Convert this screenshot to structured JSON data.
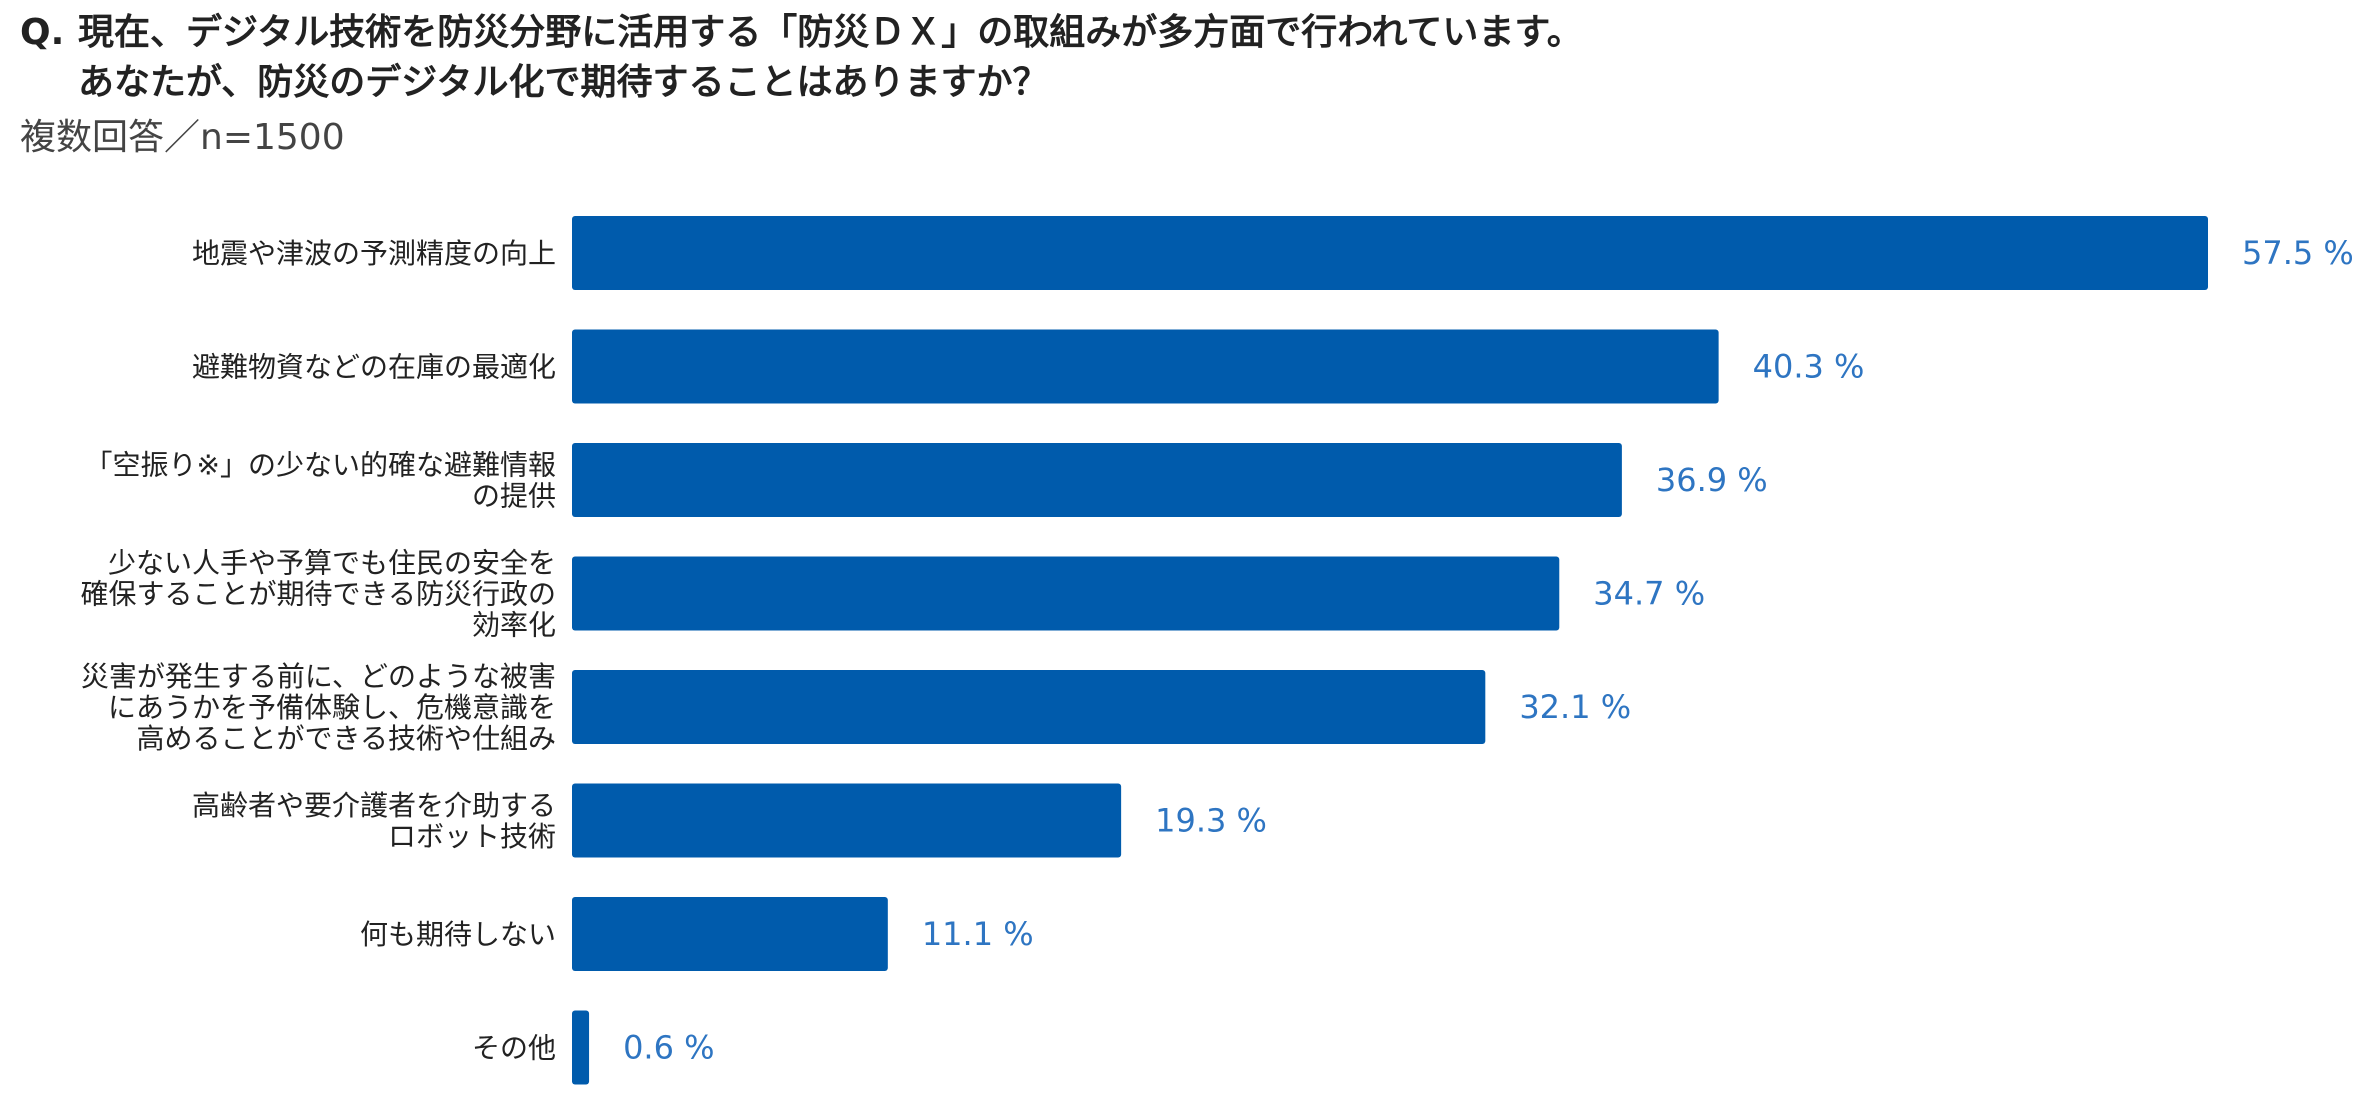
{
  "question": {
    "prefix": "Q.",
    "line1": "現在、デジタル技術を防災分野に活用する「防災ＤＸ」の取組みが多方面で行われています。",
    "line2": "あなたが、防災のデジタル化で期待することはありますか？"
  },
  "subtitle": "複数回答／n=1500",
  "colors": {
    "bar": "#005bac",
    "value_text": "#2e75c2"
  },
  "chart_data": {
    "type": "bar",
    "orientation": "horizontal",
    "title": "",
    "xlabel": "",
    "ylabel": "",
    "xlim": [
      0,
      57.5
    ],
    "unit": "%",
    "categories": [
      [
        "地震や津波の予測精度の向上"
      ],
      [
        "避難物資などの在庫の最適化"
      ],
      [
        "「空振り※」の少ない的確な避難情報",
        "の提供"
      ],
      [
        "少ない人手や予算でも住民の安全を",
        "確保することが期待できる防災行政の",
        "効率化"
      ],
      [
        "災害が発生する前に、どのような被害",
        "にあうかを予備体験し、危機意識を",
        "高めることができる技術や仕組み"
      ],
      [
        "高齢者や要介護者を介助する",
        "ロボット技術"
      ],
      [
        "何も期待しない"
      ],
      [
        "その他"
      ]
    ],
    "values": [
      57.5,
      40.3,
      36.9,
      34.7,
      32.1,
      19.3,
      11.1,
      0.6
    ],
    "value_labels": [
      "57.5 %",
      "40.3 %",
      "36.9 %",
      "34.7 %",
      "32.1 %",
      "19.3 %",
      "11.1 %",
      "0.6 %"
    ]
  }
}
